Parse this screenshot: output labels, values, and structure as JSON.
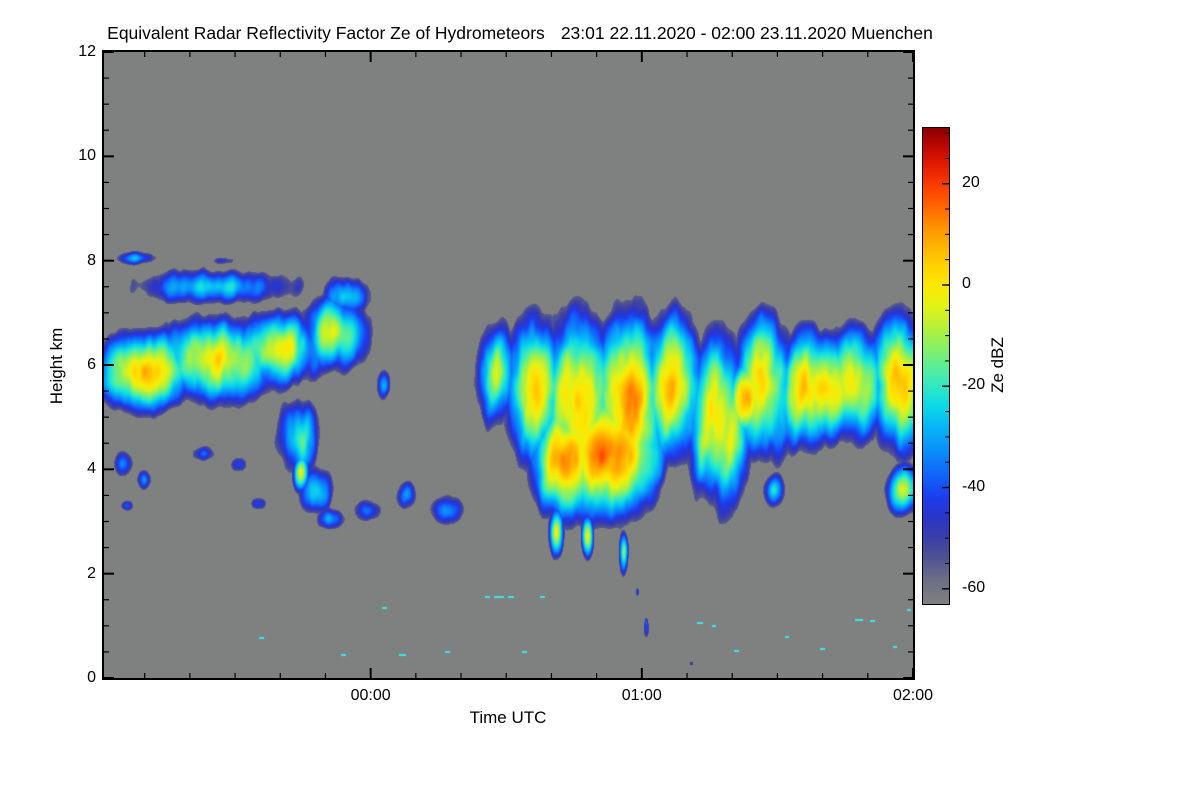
{
  "chart_data": {
    "type": "heatmap",
    "title": "Equivalent Radar Reflectivity Factor Ze of Hydrometeors",
    "period_label": "23:01 22.11.2020 - 02:00 23.11.2020 Muenchen",
    "station": "Muenchen",
    "time_start": "23:01 22.11.2020",
    "time_end": "02:00 23.11.2020",
    "xlabel": "Time UTC",
    "ylabel": "Height km",
    "ylim_km": [
      0,
      12
    ],
    "xlim_minutes_after_2300": [
      1,
      180
    ],
    "y_ticks": [
      {
        "label": "0",
        "km": 0
      },
      {
        "label": "2",
        "km": 2
      },
      {
        "label": "4",
        "km": 4
      },
      {
        "label": "6",
        "km": 6
      },
      {
        "label": "8",
        "km": 8
      },
      {
        "label": "10",
        "km": 10
      },
      {
        "label": "12",
        "km": 12
      }
    ],
    "y_minor_step_km": 0.5,
    "x_ticks": [
      {
        "label": "00:00",
        "t": 60
      },
      {
        "label": "01:00",
        "t": 120
      },
      {
        "label": "02:00",
        "t": 180
      }
    ],
    "x_minor_step_minutes": 10,
    "grid": false,
    "background_meaning": "no echo / below detection threshold",
    "background_color": "#7f8080",
    "axis_color": "#000000",
    "colorbar": {
      "label": "Ze dBZ",
      "ticks": [
        {
          "label": "20",
          "v": 20
        },
        {
          "label": "0",
          "v": 0
        },
        {
          "label": "-20",
          "v": -20
        },
        {
          "label": "-40",
          "v": -40
        },
        {
          "label": "-60",
          "v": -60
        }
      ],
      "minor_step": 5,
      "domain": [
        -63,
        31
      ],
      "stops": [
        {
          "v": -63,
          "c": "#7f8080"
        },
        {
          "v": -58,
          "c": "#6b6d85"
        },
        {
          "v": -54,
          "c": "#4f5394"
        },
        {
          "v": -50,
          "c": "#3b3fa8"
        },
        {
          "v": -46,
          "c": "#2b35c8"
        },
        {
          "v": -42,
          "c": "#1d3cee"
        },
        {
          "v": -38,
          "c": "#1160fa"
        },
        {
          "v": -33,
          "c": "#0b8cfa"
        },
        {
          "v": -28,
          "c": "#06b6f5"
        },
        {
          "v": -24,
          "c": "#0cd8e8"
        },
        {
          "v": -20,
          "c": "#30e8c4"
        },
        {
          "v": -16,
          "c": "#5cee96"
        },
        {
          "v": -12,
          "c": "#8cf060"
        },
        {
          "v": -8,
          "c": "#baf037"
        },
        {
          "v": -4,
          "c": "#e4f215"
        },
        {
          "v": 0,
          "c": "#fce803"
        },
        {
          "v": 4,
          "c": "#ffd000"
        },
        {
          "v": 8,
          "c": "#ffb000"
        },
        {
          "v": 12,
          "c": "#ff8c00"
        },
        {
          "v": 16,
          "c": "#ff6000"
        },
        {
          "v": 20,
          "c": "#f93800"
        },
        {
          "v": 24,
          "c": "#e01a00"
        },
        {
          "v": 28,
          "c": "#b50500"
        },
        {
          "v": 31,
          "c": "#8a0000"
        }
      ]
    },
    "display_threshold_dbz": -56,
    "regions": [
      {
        "t": 10,
        "h": 5.9,
        "rt": 13,
        "rh": 0.85,
        "p": 5,
        "desc": "cirrus band with orange core ~23:05-23:20, 5.0-6.8 km"
      },
      {
        "t": 26,
        "h": 6.1,
        "rt": 16,
        "rh": 0.95,
        "p": 1
      },
      {
        "t": 40,
        "h": 6.3,
        "rt": 12,
        "rh": 0.85,
        "p": -2
      },
      {
        "t": 52,
        "h": 6.6,
        "rt": 10,
        "rh": 0.9,
        "p": -8
      },
      {
        "t": 25,
        "h": 7.5,
        "rt": 26,
        "rh": 0.5,
        "p": -20,
        "desc": "thin cirrus top band 7.2-8.1 km, 23:01-23:50"
      },
      {
        "t": 55,
        "h": 7.3,
        "rt": 8,
        "rh": 0.6,
        "p": -24
      },
      {
        "t": 8,
        "h": 8.05,
        "rt": 9,
        "rh": 0.22,
        "p": -30
      },
      {
        "t": 27,
        "h": 8.0,
        "rt": 5,
        "rh": 0.18,
        "p": -34
      },
      {
        "t": 44,
        "h": 4.6,
        "rt": 6,
        "rh": 1.0,
        "p": -12,
        "desc": "fall streak descending 23:38-23:52 from 5.5 to 3 km"
      },
      {
        "t": 44.5,
        "h": 3.95,
        "rt": 2.5,
        "rh": 0.45,
        "p": -6
      },
      {
        "t": 48,
        "h": 3.6,
        "rt": 5,
        "rh": 0.7,
        "p": -20
      },
      {
        "t": 51,
        "h": 3.05,
        "rt": 6,
        "rh": 0.35,
        "p": -30
      },
      {
        "t": 5,
        "h": 4.1,
        "rt": 4,
        "rh": 0.45,
        "p": -38
      },
      {
        "t": 10,
        "h": 3.8,
        "rt": 3,
        "rh": 0.35,
        "p": -42
      },
      {
        "t": 6,
        "h": 3.3,
        "rt": 3,
        "rh": 0.22,
        "p": -45
      },
      {
        "t": 23,
        "h": 4.3,
        "rt": 6,
        "rh": 0.3,
        "p": -40
      },
      {
        "t": 31,
        "h": 4.1,
        "rt": 4,
        "rh": 0.3,
        "p": -41
      },
      {
        "t": 35,
        "h": 3.35,
        "rt": 4,
        "rh": 0.25,
        "p": -43
      },
      {
        "t": 63,
        "h": 5.6,
        "rt": 3,
        "rh": 0.5,
        "p": -36
      },
      {
        "t": 60,
        "h": 3.2,
        "rt": 6,
        "rh": 0.4,
        "p": -33
      },
      {
        "t": 68,
        "h": 3.5,
        "rt": 5,
        "rh": 0.5,
        "p": -34
      },
      {
        "t": 77,
        "h": 3.2,
        "rt": 7,
        "rh": 0.5,
        "p": -31
      },
      {
        "t": 88,
        "h": 5.8,
        "rt": 6,
        "rh": 1.2,
        "p": -5,
        "desc": "leading edge of deep frontal cloud ~00:25"
      },
      {
        "t": 96,
        "h": 5.5,
        "rt": 8,
        "rh": 1.6,
        "p": 4
      },
      {
        "t": 106,
        "h": 5.3,
        "rt": 9,
        "rh": 1.9,
        "p": 7
      },
      {
        "t": 117,
        "h": 5.2,
        "rt": 9,
        "rh": 2.0,
        "p": 8
      },
      {
        "t": 127,
        "h": 5.6,
        "rt": 8,
        "rh": 1.6,
        "p": 4
      },
      {
        "t": 137,
        "h": 5.0,
        "rt": 8,
        "rh": 1.9,
        "p": 3
      },
      {
        "t": 143,
        "h": 5.4,
        "rt": 5,
        "rh": 0.8,
        "p": 9
      },
      {
        "t": 147,
        "h": 5.6,
        "rt": 8,
        "rh": 1.5,
        "p": 5
      },
      {
        "t": 157,
        "h": 5.5,
        "rt": 8,
        "rh": 1.25,
        "p": 7
      },
      {
        "t": 160,
        "h": 5.5,
        "rt": 12,
        "rh": 1.1,
        "p": 8,
        "desc": "second orange core 01:30-01:50, 4.5-6.5 km"
      },
      {
        "t": 167,
        "h": 5.6,
        "rt": 8,
        "rh": 1.2,
        "p": 5
      },
      {
        "t": 177,
        "h": 5.7,
        "rt": 7,
        "rh": 1.5,
        "p": 7
      },
      {
        "t": 178,
        "h": 3.6,
        "rt": 5,
        "rh": 0.6,
        "p": -5
      },
      {
        "t": 103,
        "h": 4.2,
        "rt": 8,
        "rh": 1.2,
        "p": 12
      },
      {
        "t": 113,
        "h": 4.3,
        "rt": 12,
        "rh": 1.3,
        "p": 15,
        "desc": "strongest echo core 00:45-01:15, 3-5.5 km, ~15 dBZ"
      },
      {
        "t": 101,
        "h": 2.8,
        "rt": 2,
        "rh": 0.6,
        "p": -2
      },
      {
        "t": 108,
        "h": 2.7,
        "rt": 1.6,
        "rh": 0.5,
        "p": -5
      },
      {
        "t": 116,
        "h": 2.4,
        "rt": 1.4,
        "rh": 0.55,
        "p": -12,
        "desc": "precipitation streak tip reaching ~1.7 km"
      },
      {
        "t": 149,
        "h": 3.6,
        "rt": 4,
        "rh": 0.5,
        "p": -28
      },
      {
        "t": 121,
        "h": 0.95,
        "rt": 1.4,
        "rh": 0.42,
        "p": -40,
        "desc": "isolated weak virga teardrop ~01:01 at 0.5-1.3 km"
      },
      {
        "t": 121,
        "h": 1.05,
        "rt": 0.8,
        "rh": 0.22,
        "p": -35
      },
      {
        "t": 119,
        "h": 1.65,
        "rt": 0.8,
        "rh": 0.18,
        "p": -47
      }
    ],
    "speckles": [
      {
        "t": 63,
        "h": 1.35,
        "w": 1.0
      },
      {
        "t": 36,
        "h": 0.77,
        "w": 1.2
      },
      {
        "t": 54,
        "h": 0.44,
        "w": 1.0
      },
      {
        "t": 67,
        "h": 0.45,
        "w": 1.5
      },
      {
        "t": 77,
        "h": 0.5,
        "w": 1.0
      },
      {
        "t": 86,
        "h": 1.55,
        "w": 1.2
      },
      {
        "t": 88.5,
        "h": 1.55,
        "w": 2.2
      },
      {
        "t": 91,
        "h": 1.55,
        "w": 1.4
      },
      {
        "t": 94,
        "h": 0.5,
        "w": 1.0
      },
      {
        "t": 98,
        "h": 1.56,
        "w": 1.0
      },
      {
        "t": 133,
        "h": 1.05,
        "w": 1.4
      },
      {
        "t": 136,
        "h": 1.0,
        "w": 0.8
      },
      {
        "t": 141,
        "h": 0.52,
        "w": 1.0
      },
      {
        "t": 152,
        "h": 0.78,
        "w": 0.8
      },
      {
        "t": 160,
        "h": 0.55,
        "w": 1.0
      },
      {
        "t": 168,
        "h": 1.12,
        "w": 1.8
      },
      {
        "t": 171,
        "h": 1.1,
        "w": 1.0
      },
      {
        "t": 176,
        "h": 0.6,
        "w": 0.8
      },
      {
        "t": 179,
        "h": 1.3,
        "w": 0.8
      }
    ],
    "speckle_color": "#3ce4ee",
    "dark_speck": {
      "t": 130.6,
      "h": 0.29,
      "color": "#39418f"
    },
    "noise": {
      "med_amp": 6.5,
      "streak_amp": 8,
      "fine_amp": 3,
      "slant_min_per_km": 1.8,
      "seed": 7
    }
  }
}
